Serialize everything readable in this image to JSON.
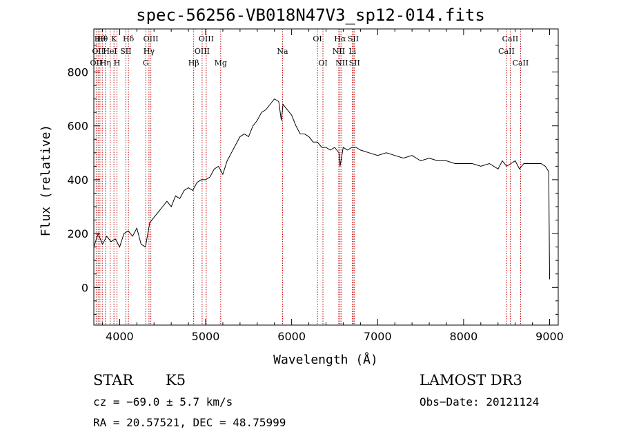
{
  "chart_data": {
    "type": "line",
    "title": "spec-56256-VB018N47V3_sp12-014.fits",
    "xlabel": "Wavelength (Å)",
    "ylabel": "Flux (relative)",
    "xlim": [
      3700,
      9100
    ],
    "ylim": [
      -140,
      960
    ],
    "xticks": [
      4000,
      5000,
      6000,
      7000,
      8000,
      9000
    ],
    "yticks": [
      0,
      200,
      400,
      600,
      800
    ],
    "grid": false,
    "series": [
      {
        "name": "spectrum",
        "x": [
          3700,
          3750,
          3800,
          3850,
          3900,
          3950,
          4000,
          4050,
          4100,
          4150,
          4200,
          4250,
          4300,
          4350,
          4400,
          4450,
          4500,
          4550,
          4600,
          4650,
          4700,
          4750,
          4800,
          4850,
          4900,
          4950,
          5000,
          5050,
          5100,
          5150,
          5200,
          5250,
          5300,
          5350,
          5400,
          5450,
          5500,
          5550,
          5600,
          5650,
          5700,
          5750,
          5800,
          5850,
          5880,
          5900,
          5950,
          6000,
          6050,
          6100,
          6150,
          6200,
          6250,
          6300,
          6350,
          6400,
          6450,
          6500,
          6550,
          6563,
          6600,
          6650,
          6700,
          6750,
          6800,
          6900,
          7000,
          7100,
          7200,
          7300,
          7400,
          7500,
          7600,
          7700,
          7800,
          7900,
          8000,
          8100,
          8200,
          8300,
          8400,
          8450,
          8500,
          8550,
          8600,
          8650,
          8700,
          8800,
          8900,
          8950,
          8990,
          9000
        ],
        "y": [
          150,
          200,
          160,
          190,
          170,
          180,
          150,
          200,
          210,
          190,
          220,
          160,
          150,
          240,
          260,
          280,
          300,
          320,
          300,
          340,
          330,
          360,
          370,
          360,
          390,
          400,
          400,
          410,
          440,
          450,
          420,
          470,
          500,
          530,
          560,
          570,
          560,
          600,
          620,
          650,
          660,
          680,
          700,
          690,
          620,
          680,
          660,
          640,
          600,
          570,
          570,
          560,
          540,
          540,
          520,
          520,
          510,
          520,
          500,
          450,
          520,
          510,
          520,
          520,
          510,
          500,
          490,
          500,
          490,
          480,
          490,
          470,
          480,
          470,
          470,
          460,
          460,
          460,
          450,
          460,
          440,
          470,
          450,
          460,
          470,
          440,
          460,
          460,
          460,
          450,
          430,
          30
        ]
      }
    ],
    "lines": [
      {
        "wl": 3727,
        "label": "OII",
        "row": 2
      },
      {
        "wl": 3750,
        "label": "OII",
        "row": 1
      },
      {
        "wl": 3771,
        "label": "Hθ",
        "row": 0
      },
      {
        "wl": 3798,
        "label": "Hθ",
        "row": 0
      },
      {
        "wl": 3835,
        "label": "Hη",
        "row": 2
      },
      {
        "wl": 3889,
        "label": "HeI",
        "row": 1
      },
      {
        "wl": 3934,
        "label": "K",
        "row": 0
      },
      {
        "wl": 3969,
        "label": "H",
        "row": 2
      },
      {
        "wl": 4072,
        "label": "SII",
        "row": 1
      },
      {
        "wl": 4102,
        "label": "Hδ",
        "row": 0
      },
      {
        "wl": 4304,
        "label": "G",
        "row": 2
      },
      {
        "wl": 4341,
        "label": "Hγ",
        "row": 1
      },
      {
        "wl": 4363,
        "label": "OIII",
        "row": 0
      },
      {
        "wl": 4861,
        "label": "Hβ",
        "row": 2
      },
      {
        "wl": 4959,
        "label": "OIII",
        "row": 1
      },
      {
        "wl": 5007,
        "label": "OIII",
        "row": 0
      },
      {
        "wl": 5175,
        "label": "Mg",
        "row": 2
      },
      {
        "wl": 5894,
        "label": "Na",
        "row": 1
      },
      {
        "wl": 6300,
        "label": "OI",
        "row": 0
      },
      {
        "wl": 6364,
        "label": "OI",
        "row": 2
      },
      {
        "wl": 6548,
        "label": "NII",
        "row": 1
      },
      {
        "wl": 6563,
        "label": "Hα",
        "row": 0
      },
      {
        "wl": 6583,
        "label": "NII",
        "row": 2
      },
      {
        "wl": 6707,
        "label": "Li",
        "row": 1
      },
      {
        "wl": 6717,
        "label": "SII",
        "row": 0
      },
      {
        "wl": 6731,
        "label": "SII",
        "row": 2
      },
      {
        "wl": 8498,
        "label": "CaII",
        "row": 1
      },
      {
        "wl": 8542,
        "label": "CaII",
        "row": 0
      },
      {
        "wl": 8662,
        "label": "CaII",
        "row": 2
      }
    ]
  },
  "info": {
    "class": "STAR",
    "subclass": "K5",
    "survey": "LAMOST DR3",
    "cz": "cz = −69.0 ± 5.7 km/s",
    "obs_date": "Obs−Date: 20121124",
    "coords": "RA =  20.57521, DEC =  48.75999"
  },
  "colors": {
    "axis": "#000000",
    "line": "#000000",
    "marker": "#c00000"
  }
}
